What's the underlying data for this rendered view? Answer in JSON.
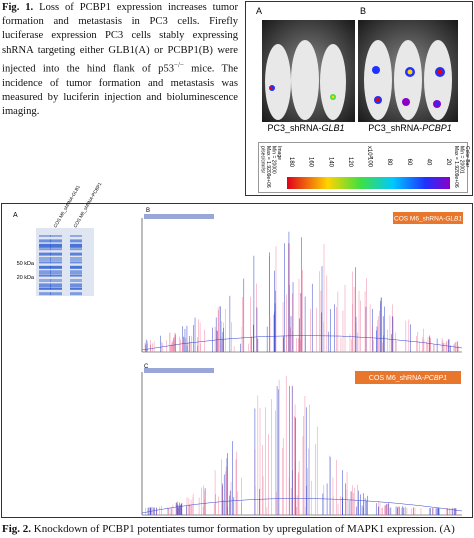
{
  "figure1": {
    "caption": {
      "label": "Fig. 1.",
      "text": "Loss of PCBP1 expression increases tumor formation and metastasis in PC3 cells. Firefly luciferase expression PC3 cells stably expressing shRNA targeting either GLB1(A) or PCBP1(B) were injected into the hind flank of p53",
      "superscript": "−/−",
      "text_after": " mice. The incidence of tumor formation and metastasis was measured by luciferin injection and bioluminescence imaging."
    },
    "panel_a": {
      "letter": "A",
      "title_prefix": "PC3_shRNA-",
      "title_gene": "GLB1"
    },
    "panel_b": {
      "letter": "B",
      "title_prefix": "PC3_shRNA-",
      "title_gene": "PCBP1"
    },
    "colorbar": {
      "scale_base": "x10",
      "scale_exp": "3",
      "ticks": [
        180,
        160,
        140,
        120,
        100,
        80,
        60,
        40,
        20
      ],
      "image_info": [
        "Image",
        "Min = 20000",
        "Max = 1.9209e+06",
        "p/sec/cm²/sr"
      ],
      "colorbar_info": [
        "Color Bar",
        "Min = 20001",
        "Max = 1.9209e+06"
      ]
    }
  },
  "figure2": {
    "panel_a": {
      "letter": "A",
      "lanes": [
        "COS M6_shRNA-GLB1",
        "COS M6_shRNA-PCBP1"
      ],
      "markers": [
        "50 kDa",
        "20 kDa"
      ]
    },
    "panel_b": {
      "letter": "B",
      "label_prefix": "COS M6_shRNA-",
      "label_gene": "GLB1"
    },
    "panel_c": {
      "letter": "C",
      "label_prefix": "COS M6_shRNA-",
      "label_gene": "PCBP1"
    },
    "caption": {
      "label": "Fig. 2.",
      "text": "Knockdown of PCBP1 potentiates tumor formation by upregulation of MAPK1 expression. (A)"
    }
  }
}
